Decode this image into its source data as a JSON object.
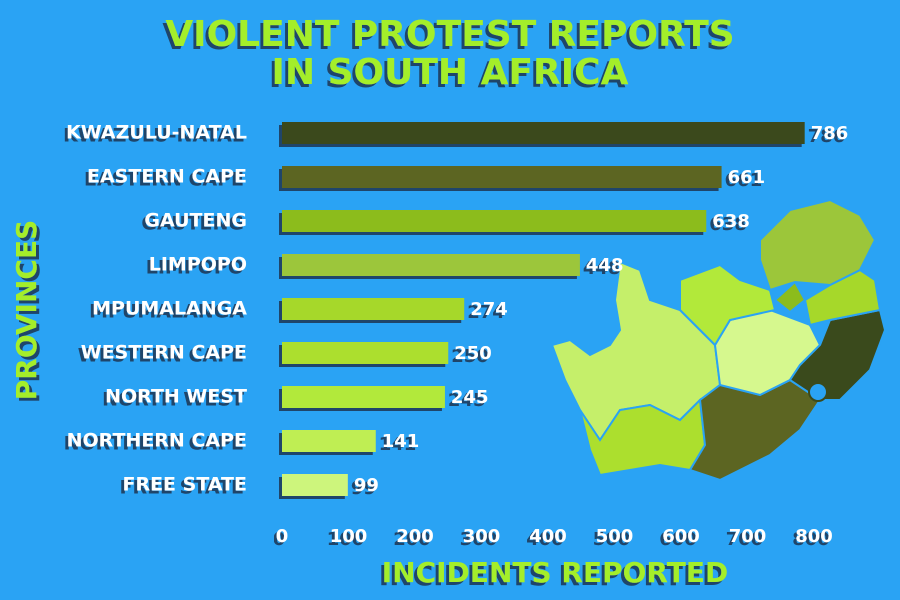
{
  "chart_data": {
    "type": "hbar",
    "title": [
      "VIOLENT PROTEST REPORTS",
      "IN SOUTH AFRICA"
    ],
    "x_label": "INCIDENTS REPORTED",
    "y_label": "PROVINCES",
    "categories": [
      "KWAZULU-NATAL",
      "EASTERN CAPE",
      "GAUTENG",
      "LIMPOPO",
      "MPUMALANGA",
      "WESTERN CAPE",
      "NORTH WEST",
      "NORTHERN CAPE",
      "FREE STATE"
    ],
    "values": [
      786,
      661,
      638,
      448,
      274,
      250,
      245,
      141,
      99
    ],
    "colors": [
      "#3a4a1c",
      "#5c6522",
      "#8cbc1c",
      "#9cc63a",
      "#a6d82a",
      "#acdf2e",
      "#b2e93a",
      "#bfee52",
      "#cdf57c"
    ],
    "xlim": [
      0,
      800
    ],
    "xticks": [
      0,
      100,
      200,
      300,
      400,
      500,
      600,
      700,
      800
    ]
  }
}
